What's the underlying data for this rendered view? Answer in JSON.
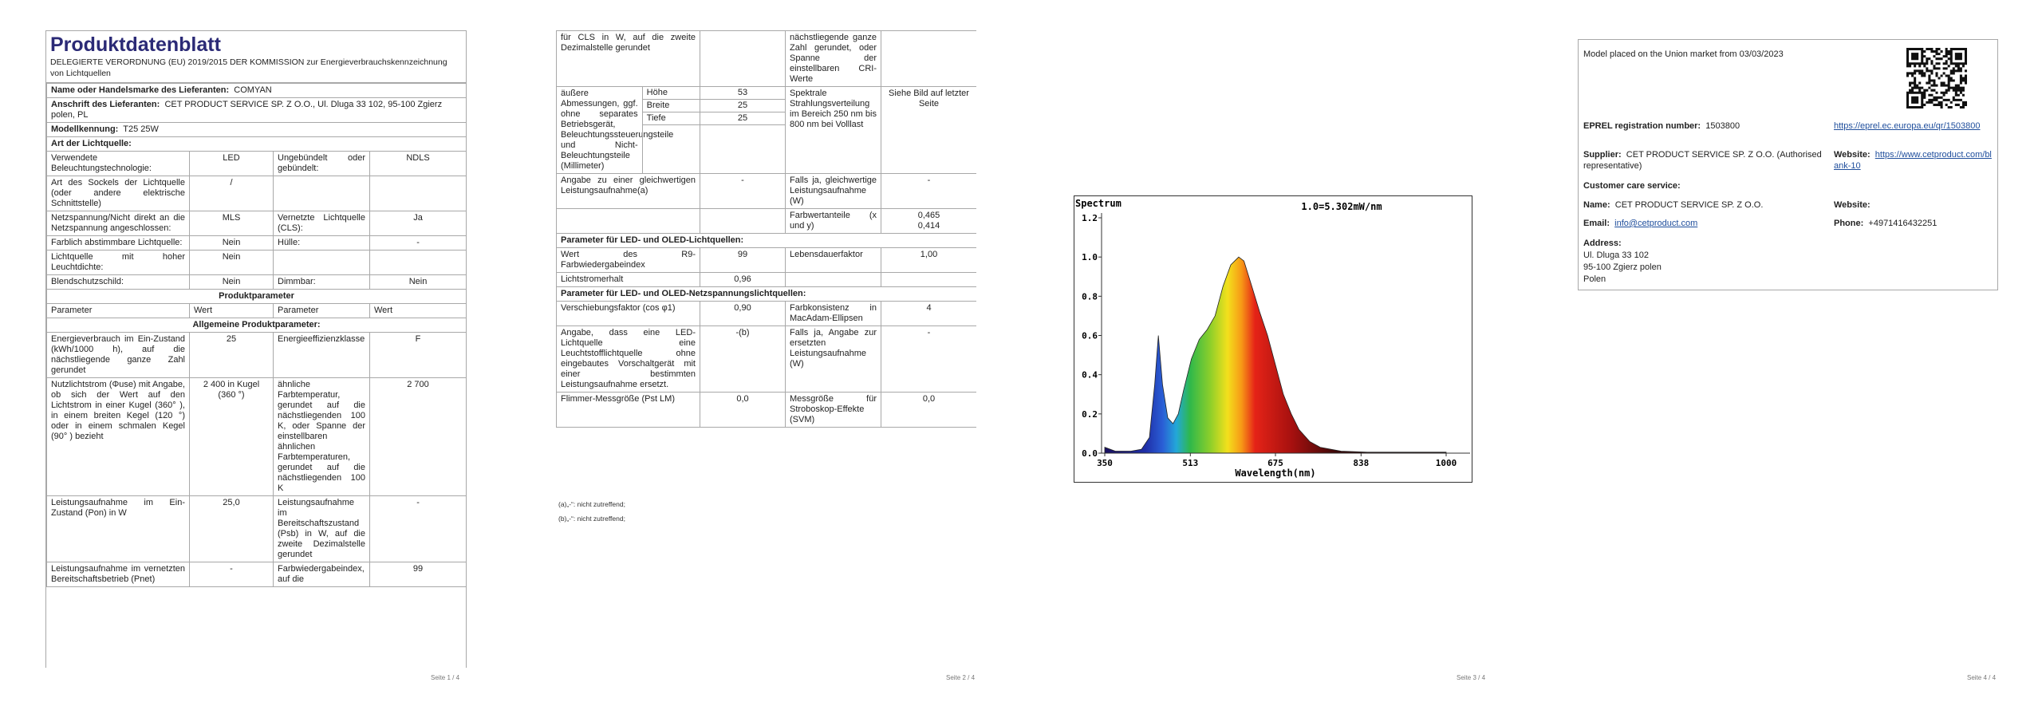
{
  "page1": {
    "title": "Produktdatenblatt",
    "subtitle": "DELEGIERTE VERORDNUNG (EU) 2019/2015 DER KOMMISSION zur Energieverbrauchskennzeichnung von Lichtquellen",
    "supplier": [
      [
        "Name oder Handelsmarke des Lieferanten:",
        "COMYAN"
      ],
      [
        "Anschrift des Lieferanten:",
        "CET PRODUCT SERVICE SP. Z O.O., Ul. Dluga 33 102, 95-100 Zgierz polen, PL"
      ],
      [
        "Modellkennung:",
        "T25 25W"
      ]
    ],
    "light_source": {
      "heading": "Art der Lichtquelle:",
      "rows": [
        [
          "Verwendete Beleuchtungstechnologie:",
          "LED",
          "Ungebündelt oder gebündelt:",
          "NDLS"
        ],
        [
          "Art des Sockels der Lichtquelle (oder andere elektrische Schnittstelle)",
          "/",
          null,
          null
        ],
        [
          "Netzspannung/Nicht direkt an die Netzspannung angeschlossen:",
          "MLS",
          "Vernetzte Lichtquelle (CLS):",
          "Ja"
        ],
        [
          "Farblich abstimmbare Lichtquelle:",
          "Nein",
          "Hülle:",
          "-"
        ],
        [
          "Lichtquelle mit hoher Leuchtdichte:",
          "Nein",
          null,
          null
        ],
        [
          "Blendschutzschild:",
          "Nein",
          "Dimmbar:",
          "Nein"
        ]
      ]
    },
    "parameters": {
      "heading": "Produktparameter",
      "columns": [
        "Parameter",
        "Wert",
        "Parameter",
        "Wert"
      ],
      "general_heading": "Allgemeine Produktparameter:",
      "rows": [
        [
          "Energieverbrauch im Ein-Zustand (kWh/1000 h), auf die nächstliegende ganze Zahl gerundet",
          "25",
          "Energieeffizienzklasse",
          "F"
        ],
        [
          "Nutzlichtstrom (Φuse) mit Angabe, ob sich der Wert auf den Lichtstrom in einer Kugel (360° ), in einem breiten Kegel (120 °) oder in einem schmalen Kegel (90° ) bezieht",
          "2 400 in Kugel (360 °)",
          "ähnliche Farbtemperatur, gerundet auf die nächstliegenden 100 K, oder Spanne der einstellbaren ähnlichen Farbtemperaturen, gerundet auf die nächstliegenden 100 K",
          "2 700"
        ],
        [
          "Leistungsaufnahme im Ein-Zustand (Pon) in W",
          "25,0",
          "Leistungsaufnahme im Bereitschaftszustand (Psb) in W, auf die zweite Dezimalstelle gerundet",
          "-"
        ],
        [
          "Leistungsaufnahme im vernetzten Bereitschaftsbetrieb (Pnet)",
          "-",
          "Farbwiedergabeindex, auf die",
          "99"
        ]
      ]
    },
    "footer": "Seite 1 / 4"
  },
  "page2": {
    "rows_top": [
      [
        "für CLS in W, auf die zweite Dezimalstelle gerundet",
        null,
        "nächstliegende ganze Zahl gerundet, oder Spanne der einstellbaren CRI-Werte",
        null
      ],
      {
        "label": "äußere Abmessungen, ggf. ohne separates Betriebsgerät, Beleuchtungssteuerungsteile und Nicht-Beleuchtungsteile (Millimeter)",
        "dimensions": [
          [
            "Höhe",
            "53"
          ],
          [
            "Breite",
            "25"
          ],
          [
            "Tiefe",
            "25"
          ]
        ],
        "parameter": "Spektrale Strahlungsverteilung im Bereich 250 nm bis 800 nm bei Volllast",
        "value": "Siehe Bild auf letzter Seite"
      },
      [
        "Angabe zu einer gleichwertigen Leistungsaufnahme(a)",
        "-",
        "Falls ja, gleichwertige Leistungsaufnahme (W)",
        "-"
      ],
      [
        null,
        null,
        "Farbwertanteile (x und y)",
        [
          "0,465",
          "0,414"
        ]
      ]
    ],
    "led_heading": "Parameter für LED- und OLED-Lichtquellen:",
    "led_rows": [
      [
        "Wert des R9-Farbwiedergabeindex",
        "99",
        "Lebensdauerfaktor",
        "1,00"
      ],
      [
        "Lichtstromerhalt",
        "0,96",
        null,
        null
      ]
    ],
    "mains_heading": "Parameter für LED- und OLED-Netzspannungslichtquellen:",
    "mains_rows": [
      [
        "Verschiebungsfaktor (cos φ1)",
        "0,90",
        "Farbkonsistenz in MacAdam-Ellipsen",
        "4"
      ],
      [
        "Angabe, dass eine LED-Lichtquelle eine Leuchtstofflichtquelle ohne eingebautes Vorschaltgerät mit einer bestimmten Leistungsaufnahme ersetzt.",
        "-(b)",
        "Falls ja, Angabe zur ersetzten Leistungsaufnahme (W)",
        "-"
      ],
      [
        "Flimmer-Messgröße (Pst LM)",
        "0,0",
        "Messgröße für Stroboskop-Effekte (SVM)",
        "0,0"
      ]
    ],
    "notes": [
      "(a)„-“: nicht zutreffend;",
      "(b)„-“: nicht zutreffend;"
    ],
    "footer": "Seite 2 / 4"
  },
  "page3": {
    "spectrum": {
      "type": "area",
      "title": "Spectrum",
      "annotation": "1.0=5.302mW/nm",
      "x_label": "Wavelength(nm)",
      "x": [
        350,
        370,
        400,
        420,
        435,
        445,
        452,
        460,
        470,
        480,
        490,
        500,
        515,
        530,
        545,
        560,
        575,
        590,
        605,
        615,
        630,
        645,
        660,
        675,
        690,
        705,
        720,
        740,
        760,
        800,
        850,
        1000
      ],
      "values": [
        0.03,
        0.01,
        0.01,
        0.02,
        0.08,
        0.35,
        0.6,
        0.35,
        0.18,
        0.15,
        0.2,
        0.32,
        0.48,
        0.58,
        0.63,
        0.7,
        0.85,
        0.96,
        1.0,
        0.98,
        0.85,
        0.72,
        0.6,
        0.45,
        0.3,
        0.2,
        0.12,
        0.06,
        0.03,
        0.01,
        0.005,
        0.005
      ],
      "xlim": [
        350,
        1000
      ],
      "ylim": [
        0,
        1.2
      ],
      "xticks": [
        350,
        513,
        675,
        838,
        1000
      ],
      "yticks": [
        {
          "value": 0,
          "label": "0.0"
        },
        0.2,
        0.4,
        0.6,
        0.8,
        {
          "value": 1,
          "label": "1.0"
        },
        1.2
      ]
    },
    "footer": "Seite 3 / 4"
  },
  "page4": {
    "market_date": "Model placed on the Union market from 03/03/2023",
    "eprel": {
      "label": "EPREL registration number:",
      "value": "1503800",
      "link": "https://eprel.ec.europa.eu/qr/1503800"
    },
    "supplier": {
      "label": "Supplier:",
      "value": "CET PRODUCT SERVICE SP. Z O.O. (Authorised representative)",
      "website_label": "Website:",
      "website": "https://www.cetproduct.com/blank-10"
    },
    "customer_care": {
      "heading": "Customer care service:",
      "name_label": "Name:",
      "name": "CET PRODUCT SERVICE SP. Z O.O.",
      "website_label": "Website:",
      "email_label": "Email:",
      "email": "info@cetproduct.com",
      "phone_label": "Phone:",
      "phone": "+4971416432251",
      "address_label": "Address:",
      "address": [
        "Ul. Dluga 33 102",
        "95-100 Zgierz polen",
        "Polen"
      ]
    },
    "footer": "Seite 4 / 4"
  }
}
